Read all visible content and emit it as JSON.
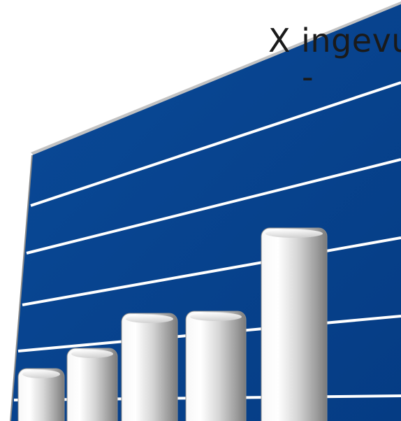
{
  "caption": {
    "line1": "X ingevuld,",
    "line2": "-"
  },
  "illustration": {
    "subject": "3d-bar-chart-clipart",
    "panel_color": "#07438f",
    "line_color": "#ffffff",
    "bar_color": "#d9d9d9",
    "bar_heights_relative": [
      0.26,
      0.36,
      0.53,
      0.54,
      0.95
    ]
  }
}
